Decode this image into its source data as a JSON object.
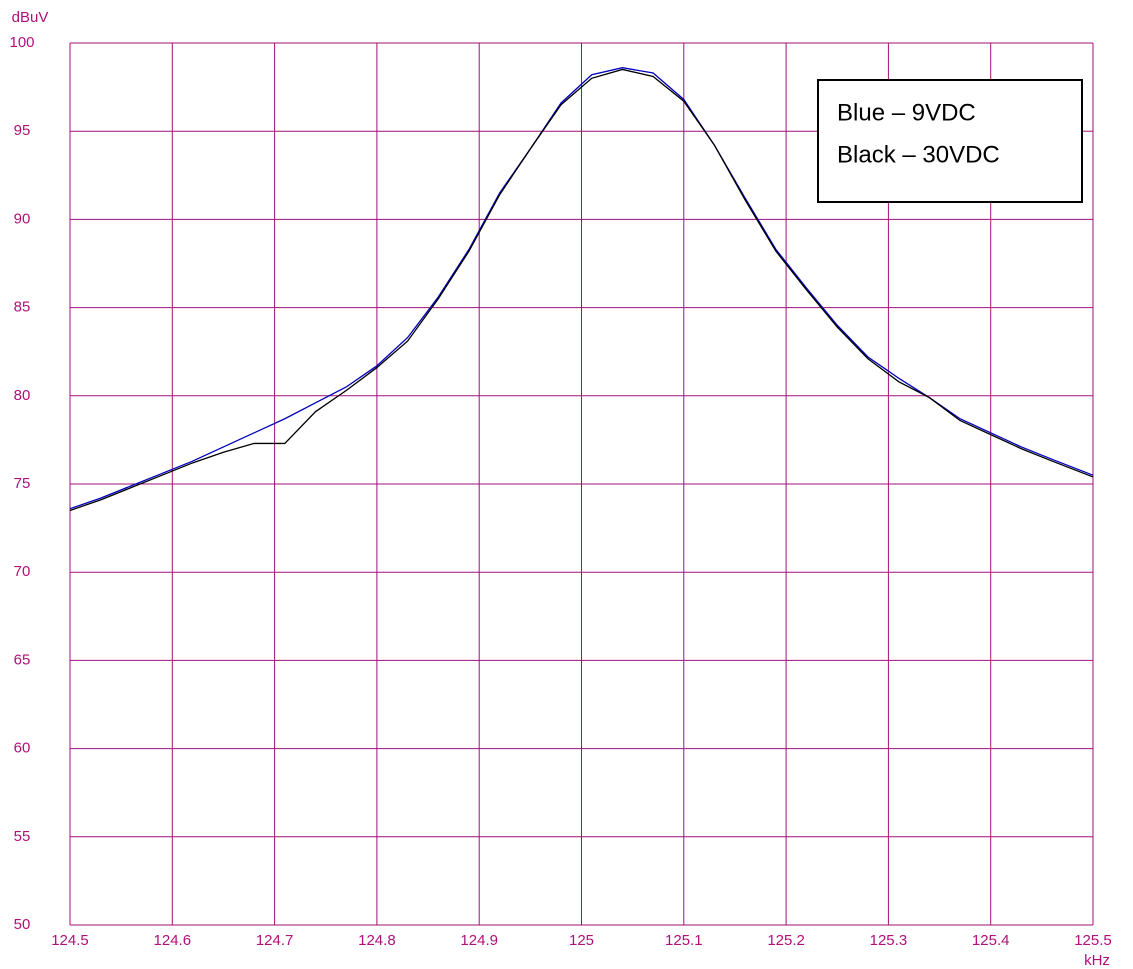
{
  "chart_data": {
    "type": "line",
    "y_label": "dBuV",
    "x_label": "kHz",
    "x": [
      124.5,
      124.53,
      124.56,
      124.59,
      124.62,
      124.65,
      124.68,
      124.71,
      124.74,
      124.77,
      124.8,
      124.83,
      124.86,
      124.89,
      124.92,
      124.95,
      124.98,
      125.01,
      125.04,
      125.07,
      125.1,
      125.13,
      125.16,
      125.19,
      125.22,
      125.25,
      125.28,
      125.31,
      125.34,
      125.37,
      125.4,
      125.43,
      125.46,
      125.5
    ],
    "series": [
      {
        "name": "Blue – 9VDC",
        "color": "#0000c0",
        "values": [
          73.6,
          74.2,
          74.9,
          75.6,
          76.3,
          77.1,
          77.9,
          78.7,
          79.6,
          80.5,
          81.7,
          83.3,
          85.6,
          88.3,
          91.5,
          94.0,
          96.6,
          98.2,
          98.6,
          98.3,
          96.8,
          94.2,
          91.2,
          88.3,
          86.1,
          84.0,
          82.2,
          81.0,
          79.9,
          78.7,
          77.9,
          77.1,
          76.4,
          75.5
        ]
      },
      {
        "name": "Black – 30VDC",
        "color": "#000000",
        "values": [
          73.5,
          74.1,
          74.8,
          75.5,
          76.2,
          76.8,
          77.3,
          77.3,
          79.1,
          80.3,
          81.6,
          83.1,
          85.5,
          88.2,
          91.4,
          94.0,
          96.5,
          98.0,
          98.5,
          98.1,
          96.7,
          94.2,
          91.1,
          88.2,
          86.0,
          83.9,
          82.1,
          80.8,
          79.9,
          78.6,
          77.8,
          77.0,
          76.3,
          75.4
        ]
      }
    ],
    "xlim": [
      124.5,
      125.5
    ],
    "ylim": [
      50,
      100
    ],
    "xticks": [
      124.5,
      124.6,
      124.7,
      124.8,
      124.9,
      125,
      125.1,
      125.2,
      125.3,
      125.4,
      125.5
    ],
    "yticks": [
      50,
      55,
      60,
      65,
      70,
      75,
      80,
      85,
      90,
      95,
      100
    ],
    "grid": true,
    "grid_color": "#a0107a",
    "legend": "upper right"
  }
}
